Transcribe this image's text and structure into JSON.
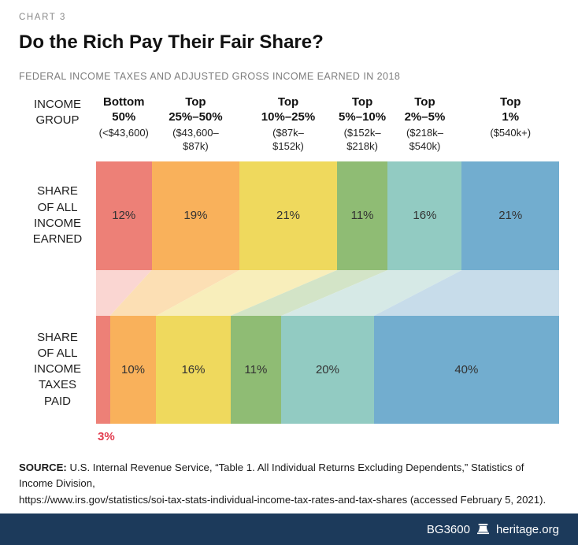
{
  "kicker": "CHART 3",
  "title": "Do the Rich Pay Their Fair Share?",
  "subtitle": "FEDERAL INCOME TAXES AND ADJUSTED GROSS INCOME EARNED IN 2018",
  "labels": {
    "income_group": "INCOME\nGROUP",
    "income_earned": "SHARE\nOF ALL\nINCOME\nEARNED",
    "taxes_paid": "SHARE\nOF ALL\nINCOME\nTAXES\nPAID"
  },
  "chart_data": {
    "type": "bar",
    "subtype": "stacked-horizontal-flow",
    "title": "Do the Rich Pay Their Fair Share?",
    "subtitle": "Federal income taxes and adjusted gross income earned in 2018",
    "unit": "%",
    "categories": [
      "Bottom\n50%",
      "Top\n25%–50%",
      "Top\n10%–25%",
      "Top\n5%–10%",
      "Top\n2%–5%",
      "Top\n1%"
    ],
    "category_ranges": [
      "(<$43,600)",
      "($43,600–\n$87k)",
      "($87k–\n$152k)",
      "($152k–\n$218k)",
      "($218k–\n$540k)",
      "($540k+)"
    ],
    "series": [
      {
        "name": "Share of All Income Earned",
        "values": [
          12,
          19,
          21,
          11,
          16,
          21
        ],
        "labels": [
          "12%",
          "19%",
          "21%",
          "11%",
          "16%",
          "21%"
        ]
      },
      {
        "name": "Share of All Income Taxes Paid",
        "values": [
          3,
          10,
          16,
          11,
          20,
          40
        ],
        "labels": [
          "",
          "10%",
          "16%",
          "11%",
          "20%",
          "40%"
        ]
      }
    ],
    "colors": [
      "#ED8077",
      "#F9B15B",
      "#EFD95D",
      "#8FBC74",
      "#92CBC2",
      "#72ADCF"
    ],
    "light_colors": [
      "#FAD6D2",
      "#FCDFB4",
      "#F8EEBB",
      "#D3E4C7",
      "#D6E9E6",
      "#C7DCEA"
    ],
    "outside_label": {
      "text": "3%",
      "color": "#E23B4E"
    }
  },
  "source": {
    "label": "SOURCE:",
    "line1": "U.S. Internal Revenue Service, “Table 1. All Individual Returns Excluding Dependents,” Statistics of Income Division,",
    "line2": "https://www.irs.gov/statistics/soi-tax-stats-individual-income-tax-rates-and-tax-shares (accessed February 5, 2021)."
  },
  "footer": {
    "doc_id": "BG3600",
    "site": "heritage.org"
  }
}
